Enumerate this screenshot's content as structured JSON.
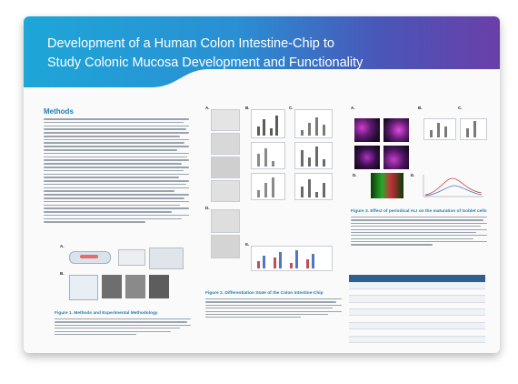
{
  "poster": {
    "title_line1": "Development of a Human Colon Intestine-Chip to",
    "title_line2": "Study Colonic Mucosa Development and Functionality",
    "methods_heading": "Methods",
    "figure1_caption": "Figure 1. Methods and Experimental Methodology",
    "figure2_caption": "Figure 2. Differentiation State of the Colon Intestine-Chip",
    "figure3_caption": "Figure 3. Effect of periodical ALI on the maturation of Goblet cells",
    "colors": {
      "banner_start": "#1ea6d8",
      "banner_end": "#6a3fa8",
      "accent": "#1b7fb8"
    }
  }
}
